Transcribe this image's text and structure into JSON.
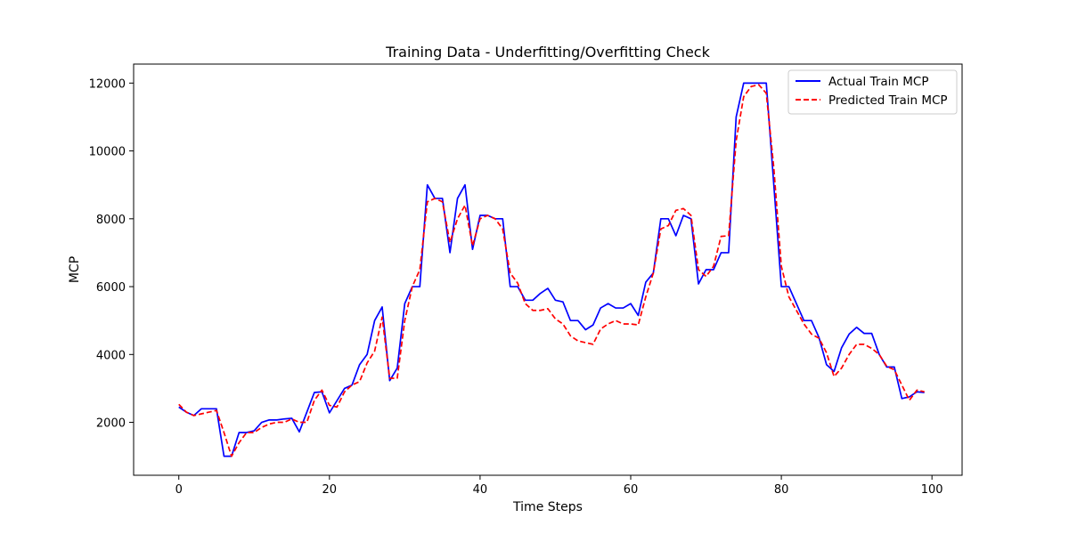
{
  "chart_data": {
    "type": "line",
    "title": "Training Data - Underfitting/Overfitting Check",
    "xlabel": "Time Steps",
    "ylabel": "MCP",
    "xlim": [
      -6,
      104
    ],
    "ylim": [
      440,
      12560
    ],
    "xticks": [
      0,
      20,
      40,
      60,
      80,
      100
    ],
    "yticks": [
      2000,
      4000,
      6000,
      8000,
      10000,
      12000
    ],
    "grid": false,
    "legend_position": "top-right",
    "x": [
      0,
      1,
      2,
      3,
      4,
      5,
      6,
      7,
      8,
      9,
      10,
      11,
      12,
      13,
      14,
      15,
      16,
      17,
      18,
      19,
      20,
      21,
      22,
      23,
      24,
      25,
      26,
      27,
      28,
      29,
      30,
      31,
      32,
      33,
      34,
      35,
      36,
      37,
      38,
      39,
      40,
      41,
      42,
      43,
      44,
      45,
      46,
      47,
      48,
      49,
      50,
      51,
      52,
      53,
      54,
      55,
      56,
      57,
      58,
      59,
      60,
      61,
      62,
      63,
      64,
      65,
      66,
      67,
      68,
      69,
      70,
      71,
      72,
      73,
      74,
      75,
      76,
      77,
      78,
      79,
      80,
      81,
      82,
      83,
      84,
      85,
      86,
      87,
      88,
      89,
      90,
      91,
      92,
      93,
      94,
      95,
      96,
      97,
      98,
      99
    ],
    "series": [
      {
        "name": "Actual Train MCP",
        "color": "#0000ff",
        "style": "solid",
        "values": [
          2450,
          2300,
          2200,
          2400,
          2400,
          2400,
          1000,
          1000,
          1700,
          1700,
          1750,
          2000,
          2070,
          2070,
          2100,
          2120,
          1720,
          2300,
          2880,
          2900,
          2280,
          2640,
          3000,
          3100,
          3700,
          4000,
          5000,
          5400,
          3230,
          3600,
          5500,
          6000,
          6000,
          9000,
          8600,
          8600,
          7000,
          8600,
          9000,
          7100,
          8100,
          8100,
          8000,
          8000,
          6000,
          6000,
          5600,
          5600,
          5800,
          5950,
          5600,
          5550,
          5000,
          5000,
          4730,
          4870,
          5370,
          5500,
          5370,
          5370,
          5500,
          5150,
          6130,
          6400,
          8000,
          8000,
          7500,
          8100,
          8000,
          6080,
          6500,
          6500,
          7000,
          7000,
          11000,
          12000,
          12000,
          12000,
          12000,
          9000,
          6000,
          6000,
          5500,
          5000,
          5000,
          4500,
          3700,
          3500,
          4200,
          4600,
          4800,
          4620,
          4620,
          4000,
          3630,
          3630,
          2700,
          2750,
          2900,
          2880
        ]
      },
      {
        "name": "Predicted Train MCP",
        "color": "#ff0000",
        "style": "dashed",
        "values": [
          2530,
          2300,
          2200,
          2250,
          2300,
          2350,
          1700,
          1000,
          1400,
          1700,
          1700,
          1850,
          1950,
          2000,
          2000,
          2100,
          2000,
          2000,
          2650,
          2950,
          2500,
          2450,
          2900,
          3100,
          3200,
          3750,
          4100,
          5100,
          3300,
          3300,
          5000,
          6000,
          6500,
          8500,
          8600,
          8500,
          7300,
          8000,
          8400,
          7200,
          8000,
          8100,
          8000,
          7700,
          6400,
          6100,
          5500,
          5300,
          5300,
          5350,
          5050,
          4900,
          4550,
          4400,
          4350,
          4300,
          4750,
          4900,
          5000,
          4900,
          4900,
          4870,
          5700,
          6400,
          7700,
          7800,
          8250,
          8300,
          8100,
          6500,
          6300,
          6600,
          7480,
          7500,
          10300,
          11600,
          11900,
          11950,
          11700,
          9500,
          6600,
          5700,
          5300,
          4900,
          4600,
          4480,
          4050,
          3350,
          3600,
          4000,
          4300,
          4300,
          4180,
          4000,
          3650,
          3550,
          3100,
          2650,
          2950,
          2900
        ]
      }
    ]
  }
}
